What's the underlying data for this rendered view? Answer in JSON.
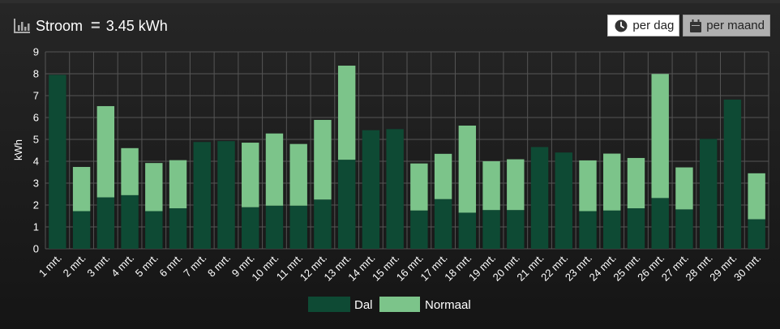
{
  "header": {
    "icon": "bar-chart-icon",
    "title": "Stroom",
    "value": "3.45 kWh"
  },
  "buttons": {
    "per_dag": "per dag",
    "per_maand": "per maand"
  },
  "colors": {
    "dal": "#0e4a34",
    "normaal": "#7cc48a",
    "grid": "#555555"
  },
  "chart_data": {
    "type": "bar",
    "stacked": true,
    "categories": [
      "1 mrt.",
      "2 mrt.",
      "3 mrt.",
      "4 mrt.",
      "5 mrt.",
      "6 mrt.",
      "7 mrt.",
      "8 mrt.",
      "9 mrt.",
      "10 mrt.",
      "11 mrt.",
      "12 mrt.",
      "13 mrt.",
      "14 mrt.",
      "15 mrt.",
      "16 mrt.",
      "17 mrt.",
      "18 mrt.",
      "19 mrt.",
      "20 mrt.",
      "21 mrt.",
      "22 mrt.",
      "23 mrt.",
      "24 mrt.",
      "25 mrt.",
      "26 mrt.",
      "27 mrt.",
      "28 mrt.",
      "29 mrt.",
      "30 mrt."
    ],
    "series": [
      {
        "name": "Dal",
        "values": [
          7.95,
          1.72,
          2.35,
          2.45,
          1.72,
          1.85,
          4.88,
          4.92,
          1.9,
          1.97,
          1.97,
          2.25,
          4.07,
          5.42,
          5.47,
          1.75,
          2.27,
          1.65,
          1.77,
          1.77,
          4.65,
          4.4,
          1.72,
          1.75,
          1.85,
          2.32,
          1.8,
          5.02,
          6.82,
          1.35
        ]
      },
      {
        "name": "Normaal",
        "values": [
          0,
          2.02,
          4.17,
          2.15,
          2.2,
          2.2,
          0,
          0,
          2.95,
          3.3,
          2.82,
          3.64,
          4.3,
          0,
          0,
          2.15,
          2.07,
          3.98,
          2.23,
          2.32,
          0,
          0,
          2.32,
          2.6,
          2.3,
          5.67,
          1.92,
          0,
          0,
          2.1
        ]
      }
    ],
    "ylabel": "kWh",
    "xlabel": "",
    "ylim": [
      0,
      9
    ],
    "yticks": [
      "0",
      "1",
      "2",
      "3",
      "4",
      "5",
      "6",
      "7",
      "8",
      "9"
    ],
    "grid": true,
    "legend": "bottom-center"
  }
}
